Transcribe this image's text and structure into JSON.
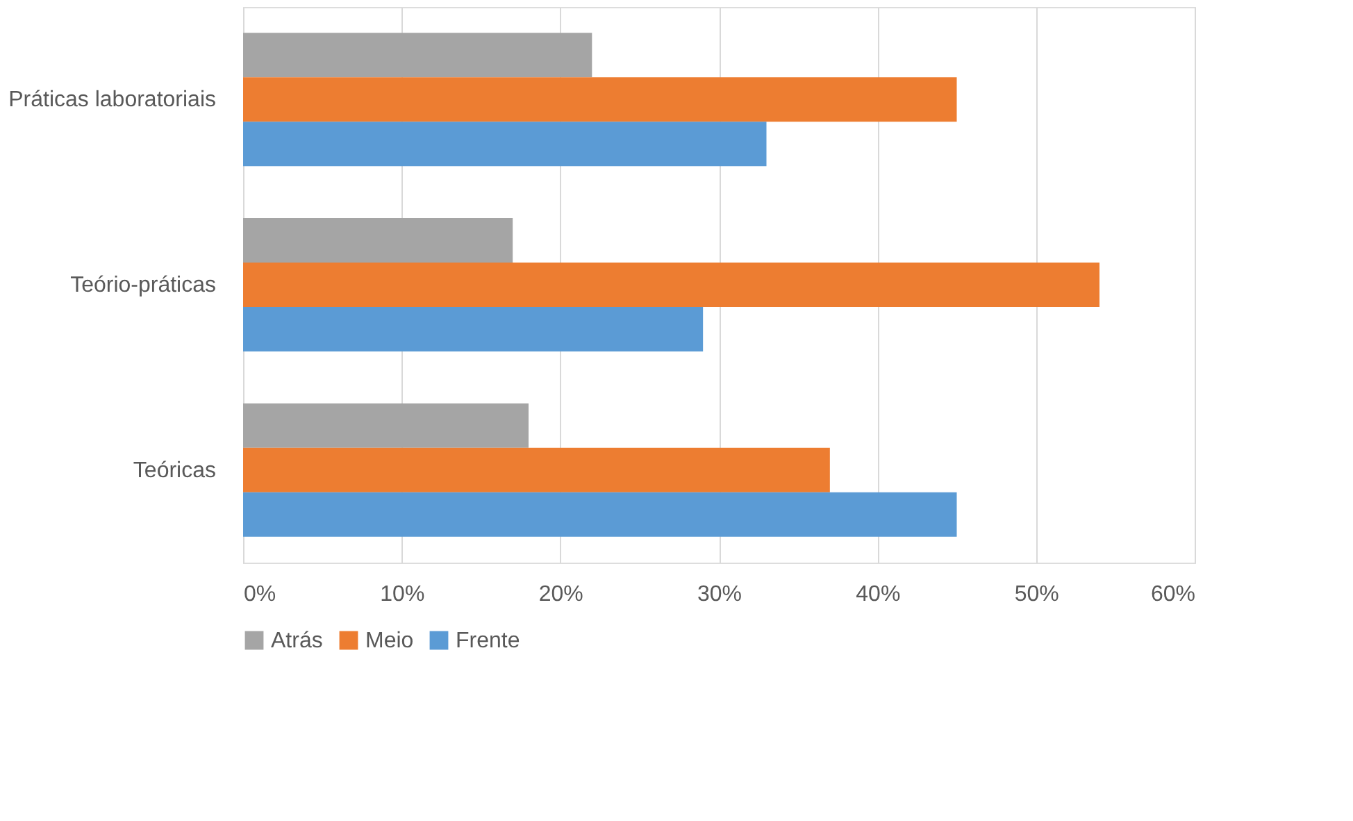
{
  "chart_data": {
    "type": "bar",
    "orientation": "horizontal",
    "categories": [
      "Práticas laboratoriais",
      "Teório-práticas",
      "Teóricas"
    ],
    "series": [
      {
        "name": "Atrás",
        "color": "#a5a5a5",
        "values": [
          22,
          17,
          18
        ]
      },
      {
        "name": "Meio",
        "color": "#ed7d31",
        "values": [
          45,
          54,
          37
        ]
      },
      {
        "name": "Frente",
        "color": "#5b9bd5",
        "values": [
          33,
          29,
          45
        ]
      }
    ],
    "xlim": [
      0,
      60
    ],
    "xticks": [
      {
        "value": 0,
        "label": "0%"
      },
      {
        "value": 10,
        "label": "10%"
      },
      {
        "value": 20,
        "label": "20%"
      },
      {
        "value": 30,
        "label": "30%"
      },
      {
        "value": 40,
        "label": "40%"
      },
      {
        "value": 50,
        "label": "50%"
      },
      {
        "value": 60,
        "label": "60%"
      }
    ],
    "grid": "x",
    "legend": "bottom"
  }
}
